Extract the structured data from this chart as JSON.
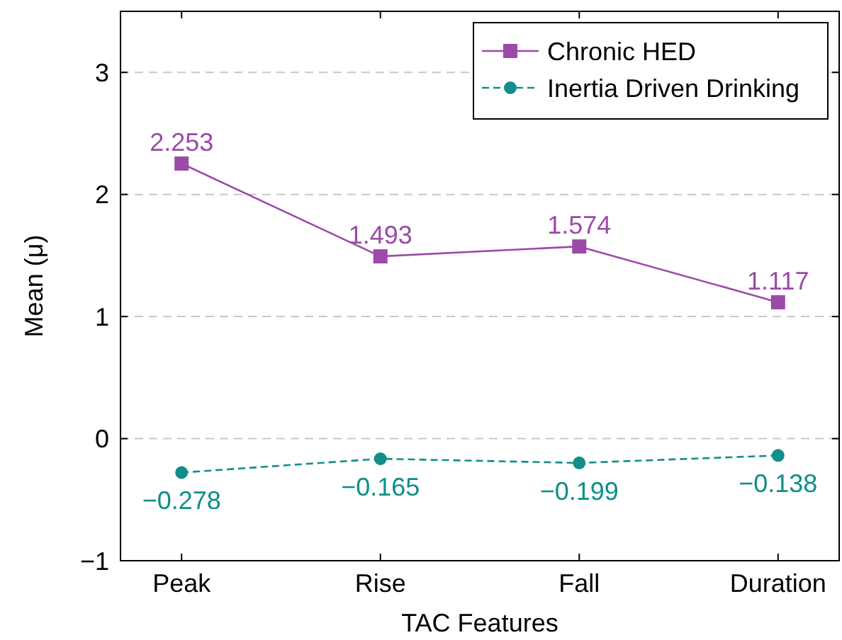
{
  "chart_data": {
    "type": "line",
    "xlabel": "TAC Features",
    "ylabel": "Mean (μ)",
    "categories": [
      "Peak",
      "Rise",
      "Fall",
      "Duration"
    ],
    "series": [
      {
        "name": "Chronic HED",
        "color": "#9b4aa8",
        "values": [
          2.253,
          1.493,
          1.574,
          1.117
        ],
        "value_labels": [
          "2.253",
          "1.493",
          "1.574",
          "1.117"
        ],
        "marker": "square",
        "line_style": "solid"
      },
      {
        "name": "Inertia Driven Drinking",
        "color": "#0f8f88",
        "values": [
          -0.278,
          -0.165,
          -0.199,
          -0.138
        ],
        "value_labels": [
          "−0.278",
          "−0.165",
          "−0.199",
          "−0.138"
        ],
        "marker": "circle",
        "line_style": "dashed"
      }
    ],
    "ylim": [
      -1,
      3.5
    ],
    "yticks": [
      {
        "value": -1,
        "label": "−1"
      },
      {
        "value": 0,
        "label": "0"
      },
      1,
      2,
      3
    ],
    "grid": "y",
    "legend": "top right"
  }
}
